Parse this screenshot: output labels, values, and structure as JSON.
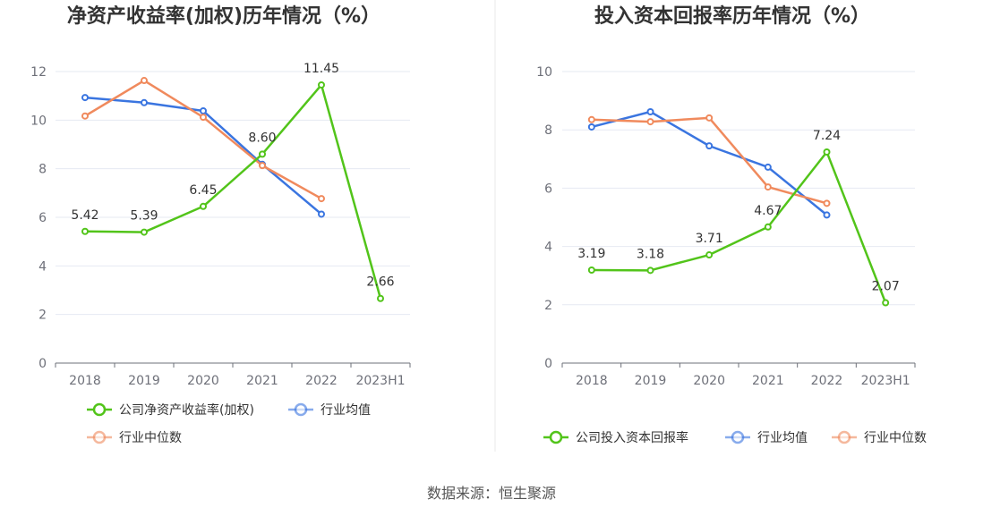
{
  "source_text": "数据来源：恒生聚源",
  "chart_data": [
    {
      "type": "line",
      "title": "净资产收益率(加权)历年情况（%）",
      "categories": [
        "2018",
        "2019",
        "2020",
        "2021",
        "2022",
        "2023H1"
      ],
      "ylim": [
        0,
        12
      ],
      "yticks": [
        0,
        2,
        4,
        6,
        8,
        10,
        12
      ],
      "grid": true,
      "legend_placement": "bottom",
      "series": [
        {
          "name": "公司净资产收益率(加权)",
          "color": "#52c41a",
          "values": [
            5.42,
            5.39,
            6.45,
            8.6,
            11.45,
            2.66
          ],
          "labels": [
            "5.42",
            "5.39",
            "6.45",
            "8.60",
            "11.45",
            "2.66"
          ]
        },
        {
          "name": "行业均值",
          "color": "#3a75e0",
          "values": [
            10.93,
            10.72,
            10.38,
            8.18,
            6.13,
            null
          ]
        },
        {
          "name": "行业中位数",
          "color": "#f08a5d",
          "values": [
            10.17,
            11.63,
            10.12,
            8.13,
            6.77,
            null
          ]
        }
      ]
    },
    {
      "type": "line",
      "title": "投入资本回报率历年情况（%）",
      "categories": [
        "2018",
        "2019",
        "2020",
        "2021",
        "2022",
        "2023H1"
      ],
      "ylim": [
        0,
        10
      ],
      "yticks": [
        0,
        2,
        4,
        6,
        8,
        10
      ],
      "grid": true,
      "legend_placement": "bottom",
      "series": [
        {
          "name": "公司投入资本回报率",
          "color": "#52c41a",
          "values": [
            3.19,
            3.18,
            3.71,
            4.67,
            7.24,
            2.07
          ],
          "labels": [
            "3.19",
            "3.18",
            "3.71",
            "4.67",
            "7.24",
            "2.07"
          ]
        },
        {
          "name": "行业均值",
          "color": "#3a75e0",
          "values": [
            8.1,
            8.62,
            7.45,
            6.72,
            5.08,
            null
          ]
        },
        {
          "name": "行业中位数",
          "color": "#f08a5d",
          "values": [
            8.35,
            8.28,
            8.41,
            6.04,
            5.48,
            null
          ]
        }
      ]
    }
  ]
}
